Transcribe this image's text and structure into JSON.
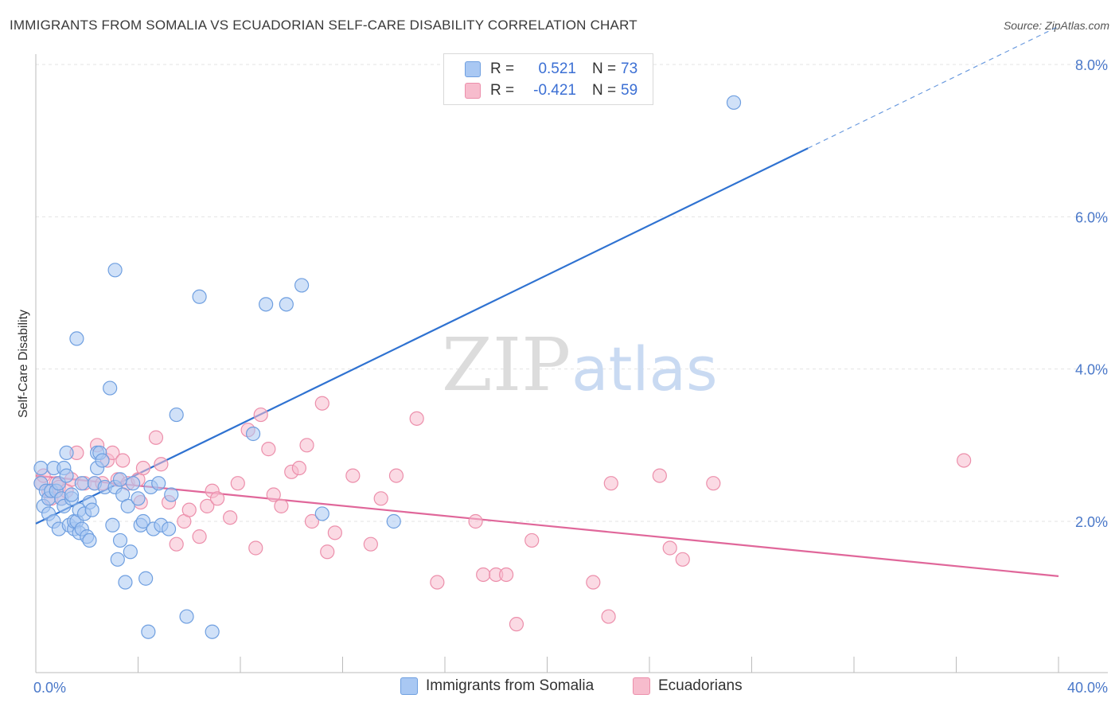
{
  "header": {
    "title": "IMMIGRANTS FROM SOMALIA VS ECUADORIAN SELF-CARE DISABILITY CORRELATION CHART",
    "source": "Source: ZipAtlas.com"
  },
  "watermark": {
    "zip": "ZIP",
    "atlas": "atlas"
  },
  "legend": {
    "rows": [
      {
        "r_label": "R =",
        "r_value": "0.521",
        "n_label": "N =",
        "n_value": "73"
      },
      {
        "r_label": "R =",
        "r_value": "-0.421",
        "n_label": "N =",
        "n_value": "59"
      }
    ]
  },
  "colors": {
    "blue_fill": "#a9c8f3",
    "blue_stroke": "#6f9fe0",
    "blue_line": "#2f72d1",
    "pink_fill": "#f7bccd",
    "pink_stroke": "#ec8fab",
    "pink_line": "#e0679a",
    "tick_text": "#4a78c9",
    "grid": "#e3e3e3"
  },
  "chart_data": {
    "type": "scatter",
    "title": "IMMIGRANTS FROM SOMALIA VS ECUADORIAN SELF-CARE DISABILITY CORRELATION CHART",
    "xlabel": "",
    "ylabel": "Self-Care Disability",
    "xlim": [
      0,
      40
    ],
    "ylim": [
      0,
      8.4
    ],
    "x_tick_labels": [
      "0.0%",
      "40.0%"
    ],
    "y_ticks": [
      2,
      4,
      6,
      8
    ],
    "y_tick_labels": [
      "2.0%",
      "4.0%",
      "6.0%",
      "8.0%"
    ],
    "grid": true,
    "legend_position": "bottom",
    "series": [
      {
        "name": "Immigrants from Somalia",
        "color": "#6f9fe0",
        "trend": {
          "x0": 0,
          "y0": 1.97,
          "x1": 40,
          "y1": 8.5,
          "solid_until_x": 30.2
        },
        "points": [
          [
            0.2,
            2.7
          ],
          [
            0.2,
            2.5
          ],
          [
            0.3,
            2.2
          ],
          [
            0.4,
            2.4
          ],
          [
            0.5,
            2.3
          ],
          [
            0.5,
            2.1
          ],
          [
            0.6,
            2.4
          ],
          [
            0.7,
            2.7
          ],
          [
            0.7,
            2.0
          ],
          [
            0.8,
            2.4
          ],
          [
            0.9,
            2.5
          ],
          [
            0.9,
            1.9
          ],
          [
            1.0,
            2.3
          ],
          [
            1.1,
            2.7
          ],
          [
            1.1,
            2.2
          ],
          [
            1.2,
            2.6
          ],
          [
            1.2,
            2.9
          ],
          [
            1.3,
            1.95
          ],
          [
            1.4,
            2.3
          ],
          [
            1.4,
            2.35
          ],
          [
            1.5,
            1.9
          ],
          [
            1.5,
            2.0
          ],
          [
            1.6,
            4.4
          ],
          [
            1.6,
            2.0
          ],
          [
            1.7,
            1.85
          ],
          [
            1.7,
            2.15
          ],
          [
            1.8,
            2.5
          ],
          [
            1.8,
            1.9
          ],
          [
            1.9,
            2.1
          ],
          [
            2.0,
            1.8
          ],
          [
            2.1,
            1.75
          ],
          [
            2.1,
            2.25
          ],
          [
            2.2,
            2.15
          ],
          [
            2.3,
            2.5
          ],
          [
            2.4,
            2.9
          ],
          [
            2.4,
            2.7
          ],
          [
            2.5,
            2.9
          ],
          [
            2.6,
            2.8
          ],
          [
            2.7,
            2.45
          ],
          [
            2.9,
            3.75
          ],
          [
            3.0,
            1.95
          ],
          [
            3.1,
            2.45
          ],
          [
            3.1,
            5.3
          ],
          [
            3.2,
            1.5
          ],
          [
            3.3,
            2.55
          ],
          [
            3.3,
            1.75
          ],
          [
            3.4,
            2.35
          ],
          [
            3.5,
            1.2
          ],
          [
            3.6,
            2.2
          ],
          [
            3.7,
            1.6
          ],
          [
            3.8,
            2.5
          ],
          [
            4.0,
            2.3
          ],
          [
            4.1,
            1.95
          ],
          [
            4.2,
            2.0
          ],
          [
            4.3,
            1.25
          ],
          [
            4.4,
            0.55
          ],
          [
            4.5,
            2.45
          ],
          [
            4.6,
            1.9
          ],
          [
            4.8,
            2.5
          ],
          [
            4.9,
            1.95
          ],
          [
            5.2,
            1.9
          ],
          [
            5.3,
            2.35
          ],
          [
            5.5,
            3.4
          ],
          [
            5.9,
            0.75
          ],
          [
            6.4,
            4.95
          ],
          [
            6.9,
            0.55
          ],
          [
            8.5,
            3.15
          ],
          [
            9.0,
            4.85
          ],
          [
            9.8,
            4.85
          ],
          [
            10.4,
            5.1
          ],
          [
            11.2,
            2.1
          ],
          [
            14.0,
            2.0
          ],
          [
            27.3,
            7.5
          ]
        ]
      },
      {
        "name": "Ecuadorians",
        "color": "#ec8fab",
        "trend": {
          "x0": 0,
          "y0": 2.6,
          "x1": 40,
          "y1": 1.28
        },
        "points": [
          [
            0.2,
            2.5
          ],
          [
            0.3,
            2.6
          ],
          [
            0.5,
            2.4
          ],
          [
            0.6,
            2.3
          ],
          [
            0.8,
            2.5
          ],
          [
            0.9,
            2.45
          ],
          [
            1.0,
            2.3
          ],
          [
            1.2,
            2.4
          ],
          [
            1.4,
            2.55
          ],
          [
            1.6,
            2.9
          ],
          [
            1.9,
            2.5
          ],
          [
            2.3,
            2.5
          ],
          [
            2.4,
            3.0
          ],
          [
            2.6,
            2.5
          ],
          [
            2.8,
            2.8
          ],
          [
            3.0,
            2.9
          ],
          [
            3.2,
            2.55
          ],
          [
            3.4,
            2.8
          ],
          [
            3.6,
            2.5
          ],
          [
            4.0,
            2.55
          ],
          [
            4.1,
            2.25
          ],
          [
            4.2,
            2.7
          ],
          [
            4.7,
            3.1
          ],
          [
            4.9,
            2.75
          ],
          [
            5.2,
            2.25
          ],
          [
            5.5,
            1.7
          ],
          [
            5.8,
            2.0
          ],
          [
            6.0,
            2.15
          ],
          [
            6.4,
            1.8
          ],
          [
            6.7,
            2.2
          ],
          [
            6.9,
            2.4
          ],
          [
            7.1,
            2.3
          ],
          [
            7.6,
            2.05
          ],
          [
            7.9,
            2.5
          ],
          [
            8.3,
            3.2
          ],
          [
            8.6,
            1.65
          ],
          [
            8.8,
            3.4
          ],
          [
            9.1,
            2.95
          ],
          [
            9.3,
            2.35
          ],
          [
            9.6,
            2.2
          ],
          [
            10.0,
            2.65
          ],
          [
            10.3,
            2.7
          ],
          [
            10.6,
            3.0
          ],
          [
            10.8,
            2.0
          ],
          [
            11.2,
            3.55
          ],
          [
            11.4,
            1.6
          ],
          [
            11.7,
            1.85
          ],
          [
            12.4,
            2.6
          ],
          [
            13.1,
            1.7
          ],
          [
            13.5,
            2.3
          ],
          [
            14.1,
            2.6
          ],
          [
            14.9,
            3.35
          ],
          [
            15.7,
            1.2
          ],
          [
            17.2,
            2.0
          ],
          [
            17.5,
            1.3
          ],
          [
            18.8,
            0.65
          ],
          [
            19.4,
            1.75
          ],
          [
            22.5,
            2.5
          ],
          [
            36.3,
            2.8
          ]
        ]
      }
    ],
    "extra_points": {
      "Ecuadorians": [
        [
          18.0,
          1.3
        ],
        [
          18.4,
          1.3
        ],
        [
          21.8,
          1.2
        ],
        [
          22.4,
          0.75
        ],
        [
          24.4,
          2.6
        ],
        [
          24.8,
          1.65
        ],
        [
          25.3,
          1.5
        ],
        [
          26.5,
          2.5
        ]
      ]
    }
  },
  "bottom_legend": [
    {
      "label": "Immigrants from Somalia"
    },
    {
      "label": "Ecuadorians"
    }
  ]
}
